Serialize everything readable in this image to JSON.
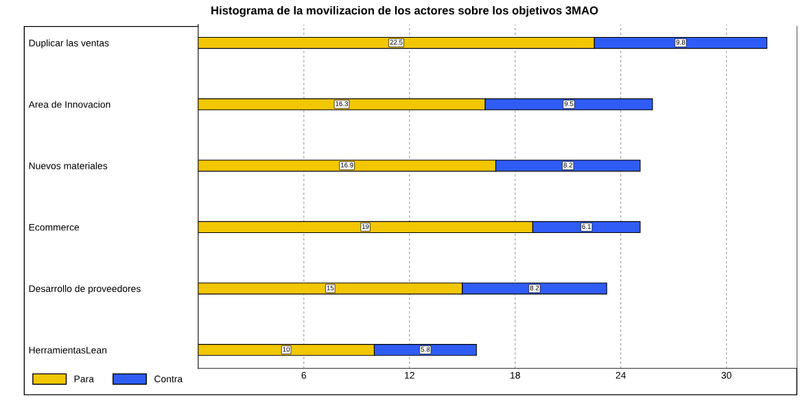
{
  "chart_data": {
    "type": "bar",
    "orientation": "horizontal",
    "stacked": true,
    "title": "Histograma de la movilizacion de los actores sobre los objetivos 3MAO",
    "categories": [
      "Duplicar las ventas",
      "Area de Innovacion",
      "Nuevos materiales",
      "Ecommerce",
      "Desarrollo de proveedores",
      "HerramientasLean"
    ],
    "series": [
      {
        "name": "Para",
        "color": "#f2c700",
        "values": [
          22.5,
          16.3,
          16.9,
          19,
          15,
          10
        ]
      },
      {
        "name": "Contra",
        "color": "#2f5cf5",
        "values": [
          9.8,
          9.5,
          8.2,
          6.1,
          8.2,
          5.8
        ]
      }
    ],
    "xlim": [
      0,
      34
    ],
    "xticks": [
      6,
      12,
      18,
      24,
      30
    ],
    "grid": "x",
    "legend": "bottom left",
    "data_labels": true
  }
}
